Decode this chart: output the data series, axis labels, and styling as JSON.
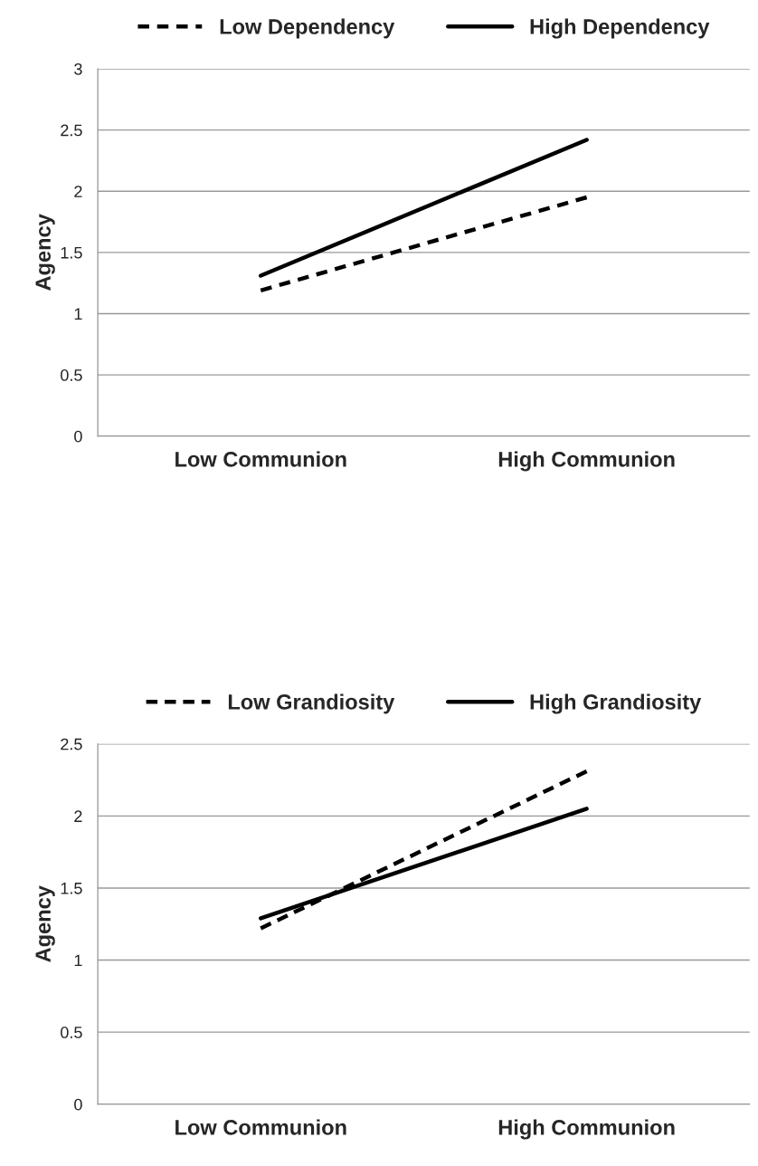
{
  "chart_data": [
    {
      "type": "line",
      "ylabel": "Agency",
      "categories": [
        "Low Communion",
        "High Communion"
      ],
      "ylim": [
        0,
        3
      ],
      "yticks": [
        0,
        0.5,
        1,
        1.5,
        2,
        2.5,
        3
      ],
      "grid": "y",
      "legend": "top",
      "series": [
        {
          "name": "Low Dependency",
          "color": "#000000",
          "line_style": "dashed",
          "values": [
            1.19,
            1.95
          ]
        },
        {
          "name": "High Dependency",
          "color": "#000000",
          "line_style": "solid",
          "values": [
            1.31,
            2.42
          ]
        }
      ]
    },
    {
      "type": "line",
      "ylabel": "Agency",
      "categories": [
        "Low Communion",
        "High Communion"
      ],
      "ylim": [
        0,
        2.5
      ],
      "yticks": [
        0,
        0.5,
        1,
        1.5,
        2,
        2.5
      ],
      "grid": "y",
      "legend": "top",
      "series": [
        {
          "name": "Low Grandiosity",
          "color": "#000000",
          "line_style": "dashed",
          "values": [
            1.22,
            2.31
          ]
        },
        {
          "name": "High Grandiosity",
          "color": "#000000",
          "line_style": "solid",
          "values": [
            1.29,
            2.05
          ]
        }
      ]
    }
  ]
}
